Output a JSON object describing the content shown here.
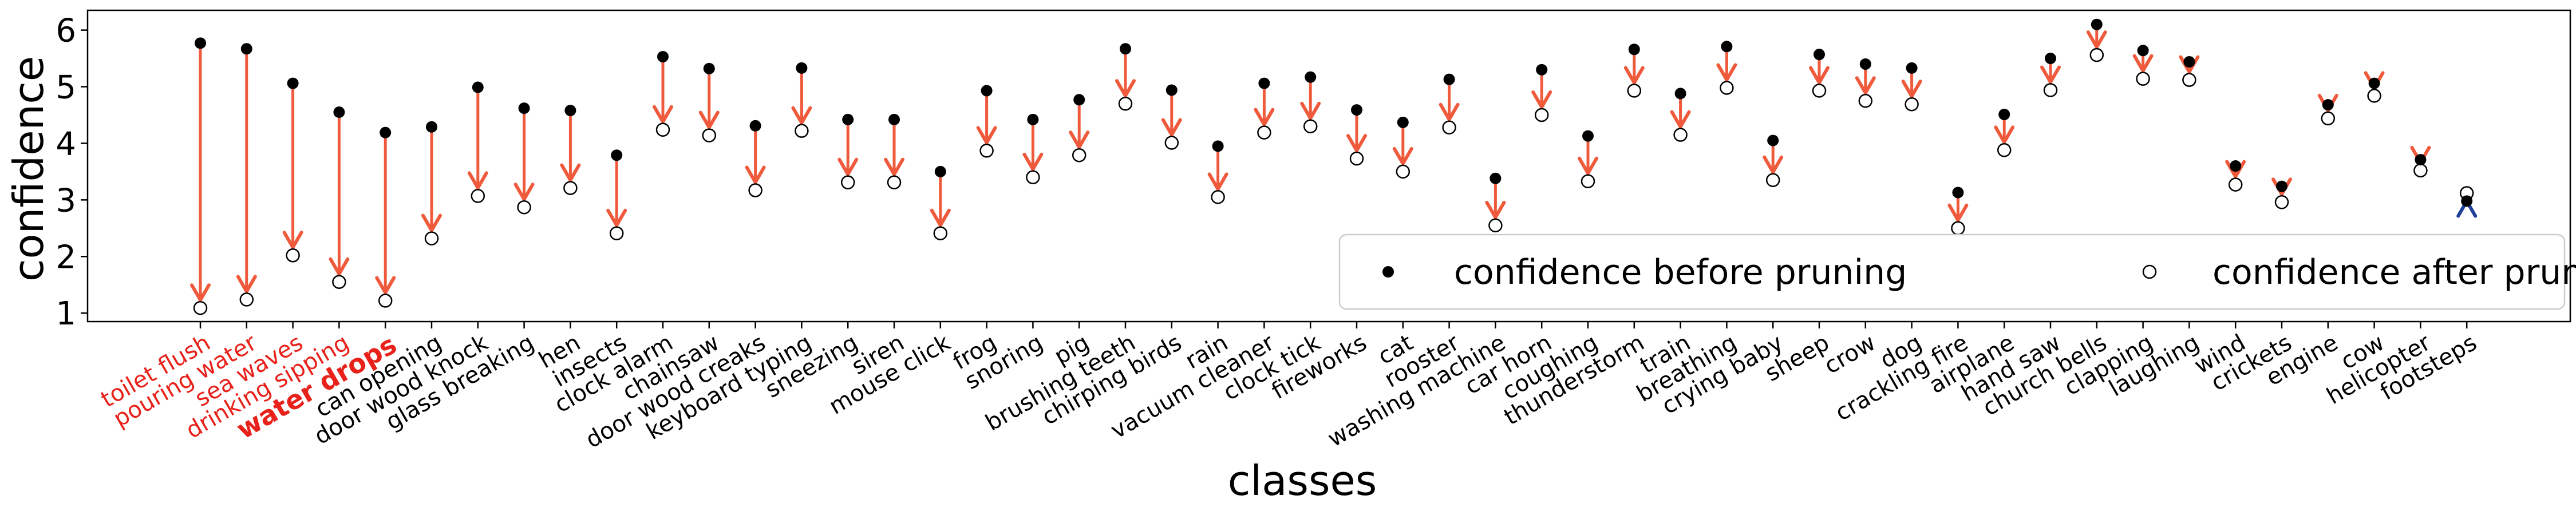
{
  "chart_data": {
    "type": "scatter",
    "xlabel": "classes",
    "ylabel": "confidence",
    "ylim": [
      0.85,
      6.35
    ],
    "yticks": [
      1,
      2,
      3,
      4,
      5,
      6
    ],
    "grid": false,
    "legend": {
      "placement": "lower-right",
      "entries": [
        {
          "name": "confidence before pruning",
          "marker": "filled-circle"
        },
        {
          "name": "confidence after pruning",
          "marker": "hollow-circle"
        }
      ]
    },
    "colors": {
      "arrow_down": "#f05a3c",
      "arrow_up": "#1f3f9a",
      "highlight_label": "#e8211a",
      "axis": "#000000"
    },
    "categories": [
      "toilet flush",
      "pouring water",
      "sea waves",
      "drinking sipping",
      "water drops",
      "can opening",
      "door wood knock",
      "glass breaking",
      "hen",
      "insects",
      "clock alarm",
      "chainsaw",
      "door wood creaks",
      "keyboard typing",
      "sneezing",
      "siren",
      "mouse click",
      "frog",
      "snoring",
      "pig",
      "brushing teeth",
      "chirping birds",
      "rain",
      "vacuum cleaner",
      "clock tick",
      "fireworks",
      "cat",
      "rooster",
      "washing machine",
      "car horn",
      "coughing",
      "thunderstorm",
      "train",
      "breathing",
      "crying baby",
      "sheep",
      "crow",
      "dog",
      "crackling fire",
      "airplane",
      "hand saw",
      "church bells",
      "clapping",
      "laughing",
      "wind",
      "crickets",
      "engine",
      "cow",
      "helicopter",
      "footsteps"
    ],
    "highlighted_categories": [
      "toilet flush",
      "pouring water",
      "sea waves",
      "drinking sipping",
      "water drops"
    ],
    "bold_categories": [
      "water drops"
    ],
    "series": [
      {
        "name": "confidence before pruning",
        "values": [
          5.77,
          5.67,
          5.06,
          4.55,
          4.19,
          4.29,
          4.99,
          4.62,
          4.58,
          3.79,
          5.53,
          5.32,
          4.31,
          5.33,
          4.42,
          4.42,
          3.5,
          4.93,
          4.42,
          4.77,
          5.67,
          4.94,
          3.95,
          5.06,
          5.17,
          4.59,
          4.37,
          5.13,
          3.38,
          5.3,
          4.13,
          5.66,
          4.88,
          5.71,
          4.05,
          5.57,
          5.4,
          5.33,
          3.13,
          4.51,
          5.5,
          6.1,
          5.64,
          5.44,
          3.6,
          3.24,
          4.68,
          5.06,
          3.71,
          2.98
        ]
      },
      {
        "name": "confidence after pruning",
        "values": [
          1.09,
          1.24,
          2.02,
          1.55,
          1.22,
          2.32,
          3.07,
          2.87,
          3.21,
          2.41,
          4.24,
          4.14,
          3.17,
          4.22,
          3.31,
          3.31,
          2.41,
          3.87,
          3.4,
          3.79,
          4.7,
          4.01,
          3.05,
          4.19,
          4.3,
          3.73,
          3.5,
          4.28,
          2.55,
          4.5,
          3.33,
          4.93,
          4.15,
          4.98,
          3.35,
          4.93,
          4.75,
          4.69,
          2.5,
          3.88,
          4.94,
          5.56,
          5.14,
          5.12,
          3.27,
          2.96,
          4.44,
          4.84,
          3.52,
          3.12
        ]
      }
    ]
  }
}
